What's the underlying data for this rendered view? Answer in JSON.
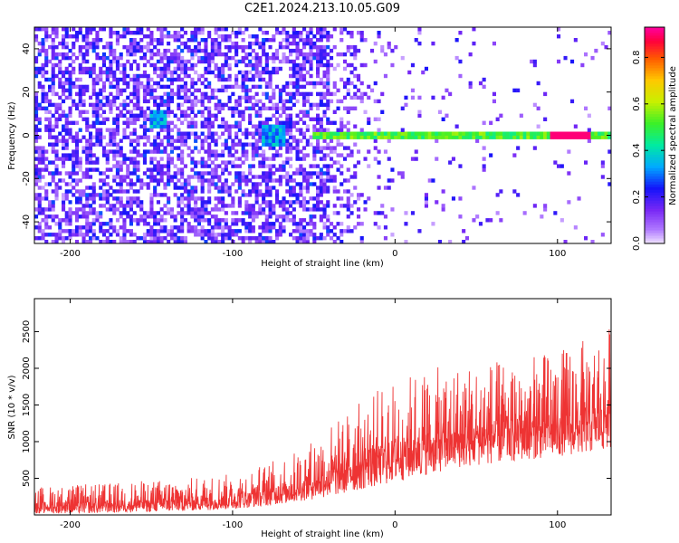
{
  "title": "C2E1.2024.213.10.05.G09",
  "chart_data": [
    {
      "type": "heatmap",
      "title": "C2E1.2024.213.10.05.G09",
      "xlabel": "Height of straight line (km)",
      "ylabel": "Frequency (Hz)",
      "xlim": [
        -222,
        133
      ],
      "ylim": [
        -50,
        50
      ],
      "xticks": [
        -200,
        -100,
        0,
        100
      ],
      "yticks": [
        -40,
        -20,
        0,
        20,
        40
      ],
      "colorbar": {
        "label": "Normalized spectral amplitude",
        "range": [
          0.0,
          0.93
        ],
        "ticks": [
          0.0,
          0.2,
          0.4,
          0.6,
          0.8
        ],
        "colormap": "rainbow"
      },
      "signal_line": {
        "frequency_hz": 0,
        "strong_from_km": -50,
        "typical_amplitude": 0.6,
        "peak_amplitude": 0.9
      }
    },
    {
      "type": "line",
      "xlabel": "Height of straight line (km)",
      "ylabel": "SNR (10 * v/v)",
      "xlim": [
        -222,
        133
      ],
      "ylim": [
        0,
        2950
      ],
      "xticks": [
        -200,
        -100,
        0,
        100
      ],
      "yticks": [
        500,
        1000,
        1500,
        2000,
        2500
      ],
      "color": "#ee3333",
      "envelope": {
        "x": [
          -222,
          -180,
          -150,
          -120,
          -100,
          -80,
          -60,
          -40,
          -20,
          0,
          20,
          40,
          60,
          80,
          100,
          120,
          133
        ],
        "low": [
          20,
          25,
          40,
          60,
          80,
          120,
          180,
          250,
          350,
          450,
          550,
          650,
          700,
          750,
          800,
          850,
          900
        ],
        "high": [
          450,
          500,
          550,
          600,
          650,
          800,
          1000,
          1400,
          1800,
          2100,
          2250,
          2300,
          2350,
          2400,
          2500,
          2700,
          2900
        ]
      }
    }
  ]
}
